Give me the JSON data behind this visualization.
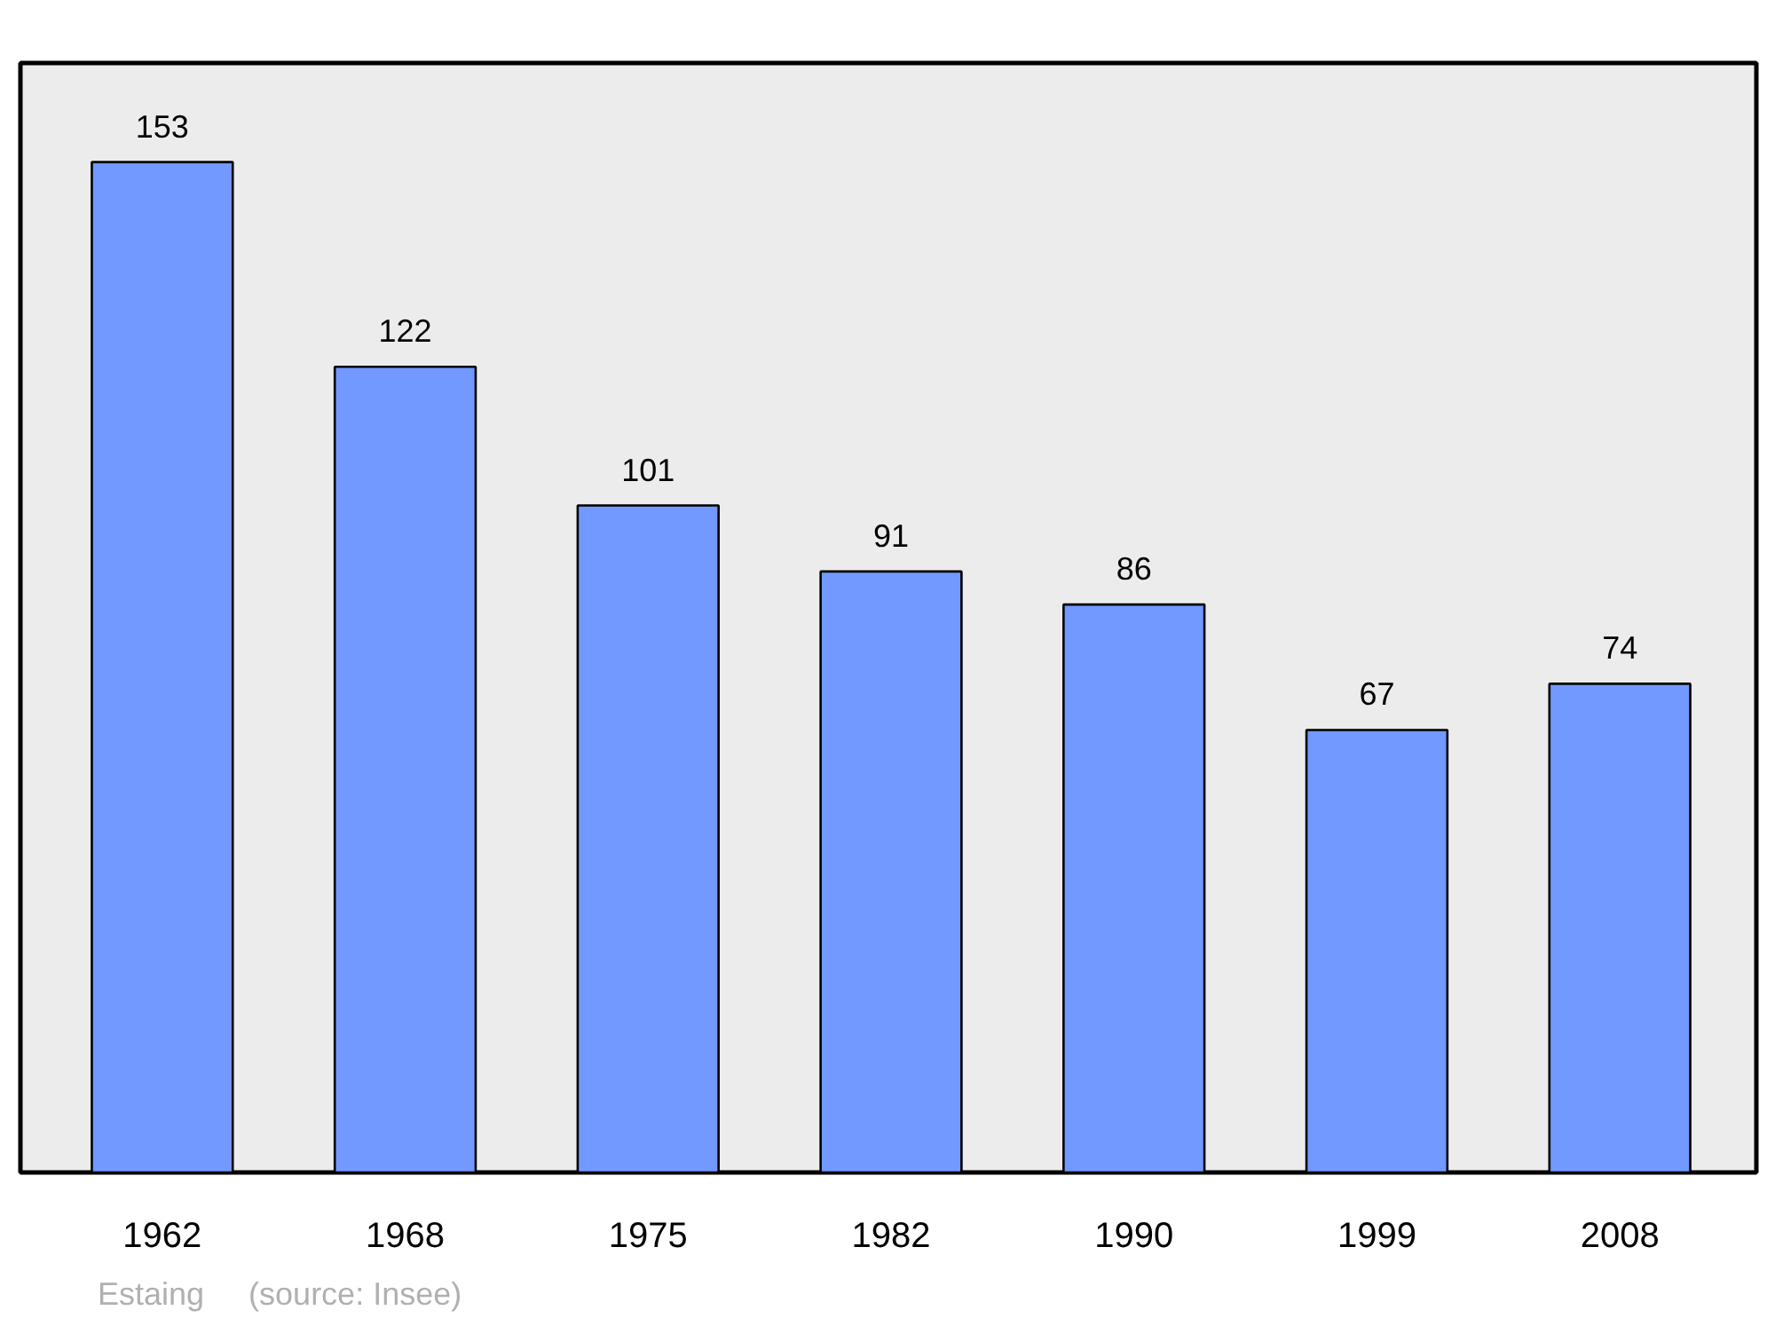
{
  "chart_data": {
    "type": "bar",
    "categories": [
      "1962",
      "1968",
      "1975",
      "1982",
      "1990",
      "1999",
      "2008"
    ],
    "values": [
      153,
      122,
      101,
      91,
      86,
      67,
      74
    ],
    "color": "#7299ff",
    "ylim": [
      0,
      168
    ],
    "data_labels": true,
    "annotations": [
      "Estaing",
      "(source: Insee)"
    ]
  }
}
